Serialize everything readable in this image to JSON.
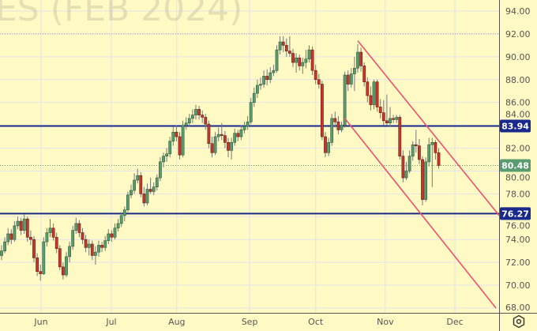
{
  "watermark": "ES (FEB 2024)",
  "colors": {
    "background": "#fff9c4",
    "up": "#5a9b6f",
    "down": "#c0392b",
    "level_line": "#1a2a8c",
    "channel": "#f0506e",
    "last_price_badge": "#5a9b6f",
    "grid": "#e3e3ea"
  },
  "settings_icon": "gear-icon",
  "chart_data": {
    "type": "candlestick",
    "ylim": [
      68,
      95
    ],
    "y_ticks": [
      "94.00",
      "92.00",
      "90.00",
      "88.00",
      "86.00",
      "84.00",
      "82.00",
      "80.00",
      "78.00",
      "76.00",
      "74.00",
      "72.00",
      "70.00",
      "68.00"
    ],
    "x_ticks": [
      {
        "label": "Jun",
        "bar": 12.2
      },
      {
        "label": "Jul",
        "bar": 33.9
      },
      {
        "label": "Aug",
        "bar": 54.1
      },
      {
        "label": "Sep",
        "bar": 76.6
      },
      {
        "label": "Oct",
        "bar": 97
      },
      {
        "label": "Nov",
        "bar": 118.5
      },
      {
        "label": "Dec",
        "bar": 140
      }
    ],
    "levels": [
      {
        "price": 83.94,
        "label": "83.94"
      },
      {
        "price": 76.27,
        "label": "76.27"
      }
    ],
    "dotted_levels": [
      92.0
    ],
    "last_price": {
      "price": 80.48,
      "label": "80.48"
    },
    "channel_lines": [
      {
        "from": {
          "bar": 110,
          "price": 91.4
        },
        "to": {
          "bar": 153.7,
          "price": 76.1
        }
      },
      {
        "from": {
          "bar": 106,
          "price": 84.6
        },
        "to": {
          "bar": 152.7,
          "price": 68.0
        }
      }
    ],
    "ohlc": [
      [
        72.6,
        73.5,
        72.2,
        73.0
      ],
      [
        73.0,
        74.2,
        72.8,
        73.8
      ],
      [
        73.8,
        75.0,
        73.5,
        74.5
      ],
      [
        74.5,
        74.9,
        73.6,
        74.0
      ],
      [
        74.0,
        75.6,
        73.8,
        75.2
      ],
      [
        75.2,
        76.0,
        74.9,
        75.6
      ],
      [
        75.6,
        75.9,
        74.4,
        74.8
      ],
      [
        74.8,
        76.2,
        74.5,
        75.8
      ],
      [
        75.8,
        76.0,
        73.8,
        74.2
      ],
      [
        74.2,
        74.8,
        73.5,
        74.0
      ],
      [
        74.0,
        74.3,
        72.0,
        72.4
      ],
      [
        72.4,
        72.8,
        70.8,
        71.2
      ],
      [
        71.2,
        71.8,
        70.4,
        71.0
      ],
      [
        71.0,
        74.2,
        70.9,
        73.8
      ],
      [
        73.8,
        75.0,
        73.4,
        74.6
      ],
      [
        74.6,
        75.8,
        74.2,
        75.0
      ],
      [
        75.0,
        75.4,
        73.9,
        74.2
      ],
      [
        74.2,
        74.6,
        72.8,
        73.2
      ],
      [
        73.2,
        73.5,
        71.3,
        71.6
      ],
      [
        71.6,
        72.0,
        70.5,
        70.9
      ],
      [
        70.9,
        72.9,
        70.7,
        72.5
      ],
      [
        72.5,
        73.8,
        72.0,
        73.4
      ],
      [
        73.4,
        75.2,
        73.1,
        74.8
      ],
      [
        74.8,
        75.9,
        74.5,
        75.4
      ],
      [
        75.4,
        75.7,
        74.2,
        74.6
      ],
      [
        74.6,
        75.0,
        73.6,
        74.0
      ],
      [
        74.0,
        74.4,
        72.9,
        73.3
      ],
      [
        73.3,
        74.0,
        72.6,
        73.6
      ],
      [
        73.6,
        73.9,
        72.2,
        72.6
      ],
      [
        72.6,
        73.4,
        71.8,
        72.9
      ],
      [
        72.9,
        73.9,
        72.5,
        73.5
      ],
      [
        73.5,
        73.8,
        72.9,
        73.3
      ],
      [
        73.3,
        74.3,
        73.0,
        73.9
      ],
      [
        73.9,
        74.9,
        73.6,
        74.5
      ],
      [
        74.5,
        74.8,
        73.8,
        74.2
      ],
      [
        74.2,
        75.4,
        74.0,
        75.0
      ],
      [
        75.0,
        75.8,
        74.7,
        75.4
      ],
      [
        75.4,
        76.4,
        75.1,
        76.1
      ],
      [
        76.1,
        76.9,
        75.6,
        76.6
      ],
      [
        76.6,
        78.2,
        76.4,
        77.9
      ],
      [
        77.9,
        78.8,
        77.6,
        78.3
      ],
      [
        78.3,
        79.8,
        78.0,
        79.2
      ],
      [
        79.2,
        80.2,
        78.9,
        79.6
      ],
      [
        79.6,
        79.9,
        77.7,
        78.0
      ],
      [
        78.0,
        78.6,
        76.9,
        77.2
      ],
      [
        77.2,
        78.9,
        77.0,
        78.4
      ],
      [
        78.4,
        79.4,
        78.0,
        78.2
      ],
      [
        78.2,
        79.0,
        77.9,
        78.6
      ],
      [
        78.6,
        79.7,
        78.3,
        79.4
      ],
      [
        79.4,
        81.2,
        79.1,
        80.8
      ],
      [
        80.8,
        81.6,
        80.3,
        81.3
      ],
      [
        81.3,
        82.0,
        80.8,
        81.5
      ],
      [
        81.5,
        83.0,
        81.2,
        82.6
      ],
      [
        82.6,
        83.9,
        82.2,
        83.4
      ],
      [
        83.4,
        84.0,
        82.6,
        83.0
      ],
      [
        83.0,
        83.4,
        81.0,
        81.4
      ],
      [
        81.4,
        84.4,
        81.2,
        84.0
      ],
      [
        84.0,
        84.7,
        83.6,
        84.2
      ],
      [
        84.2,
        85.0,
        83.9,
        84.6
      ],
      [
        84.6,
        85.4,
        84.2,
        84.9
      ],
      [
        84.9,
        85.8,
        84.5,
        85.4
      ],
      [
        85.4,
        85.7,
        84.5,
        84.9
      ],
      [
        84.9,
        85.3,
        84.2,
        84.7
      ],
      [
        84.7,
        85.0,
        83.6,
        84.1
      ],
      [
        84.1,
        84.4,
        82.0,
        82.4
      ],
      [
        82.4,
        83.0,
        81.2,
        81.6
      ],
      [
        81.6,
        83.4,
        81.4,
        83.0
      ],
      [
        83.0,
        83.8,
        82.6,
        83.2
      ],
      [
        83.2,
        84.2,
        82.7,
        83.1
      ],
      [
        83.1,
        83.5,
        82.0,
        82.5
      ],
      [
        82.5,
        82.9,
        81.2,
        81.8
      ],
      [
        81.8,
        82.9,
        81.0,
        82.5
      ],
      [
        82.5,
        83.7,
        82.2,
        83.3
      ],
      [
        83.3,
        83.6,
        82.6,
        83.0
      ],
      [
        83.0,
        84.0,
        82.7,
        83.6
      ],
      [
        83.6,
        84.3,
        83.3,
        83.9
      ],
      [
        83.9,
        84.8,
        83.6,
        84.3
      ],
      [
        84.3,
        86.4,
        84.1,
        86.0
      ],
      [
        86.0,
        87.3,
        85.6,
        86.8
      ],
      [
        86.8,
        88.0,
        86.4,
        87.5
      ],
      [
        87.5,
        88.2,
        87.1,
        87.6
      ],
      [
        87.6,
        88.8,
        87.3,
        88.3
      ],
      [
        88.3,
        88.9,
        87.5,
        88.0
      ],
      [
        88.0,
        89.1,
        87.7,
        88.6
      ],
      [
        88.6,
        89.3,
        88.3,
        88.8
      ],
      [
        88.8,
        91.0,
        88.6,
        90.6
      ],
      [
        90.6,
        91.8,
        90.2,
        91.3
      ],
      [
        91.3,
        91.8,
        90.4,
        91.0
      ],
      [
        91.0,
        91.6,
        90.0,
        90.5
      ],
      [
        90.5,
        91.8,
        90.0,
        90.3
      ],
      [
        90.3,
        90.7,
        89.1,
        89.5
      ],
      [
        89.5,
        90.3,
        88.6,
        89.9
      ],
      [
        89.9,
        90.2,
        88.8,
        89.2
      ],
      [
        89.2,
        89.9,
        88.5,
        89.5
      ],
      [
        89.5,
        90.6,
        89.0,
        89.8
      ],
      [
        89.8,
        91.0,
        89.5,
        90.6
      ],
      [
        90.6,
        90.9,
        88.4,
        88.8
      ],
      [
        88.8,
        89.3,
        87.6,
        88.0
      ],
      [
        88.0,
        88.5,
        87.2,
        87.6
      ],
      [
        87.6,
        87.9,
        82.7,
        83.0
      ],
      [
        83.0,
        83.4,
        81.2,
        81.6
      ],
      [
        81.6,
        82.9,
        81.3,
        82.5
      ],
      [
        82.5,
        85.0,
        82.2,
        84.6
      ],
      [
        84.6,
        85.2,
        83.8,
        84.3
      ],
      [
        84.3,
        84.8,
        83.2,
        83.6
      ],
      [
        83.6,
        84.3,
        83.4,
        84.0
      ],
      [
        84.0,
        88.7,
        83.8,
        88.4
      ],
      [
        88.4,
        88.8,
        87.0,
        87.6
      ],
      [
        87.6,
        89.0,
        87.3,
        88.5
      ],
      [
        88.5,
        90.0,
        87.0,
        89.0
      ],
      [
        89.0,
        91.1,
        88.6,
        90.4
      ],
      [
        90.4,
        90.8,
        88.7,
        89.2
      ],
      [
        89.2,
        89.5,
        87.4,
        87.8
      ],
      [
        87.8,
        88.2,
        86.0,
        86.6
      ],
      [
        86.6,
        87.4,
        85.3,
        85.8
      ],
      [
        85.8,
        88.0,
        85.4,
        87.8
      ],
      [
        87.8,
        88.0,
        85.2,
        85.6
      ],
      [
        85.6,
        86.3,
        84.6,
        85.1
      ],
      [
        85.1,
        86.2,
        84.0,
        84.4
      ],
      [
        84.4,
        86.7,
        84.0,
        84.2
      ],
      [
        84.2,
        85.6,
        83.9,
        84.6
      ],
      [
        84.6,
        84.9,
        84.2,
        84.5
      ],
      [
        84.5,
        84.9,
        84.2,
        84.7
      ],
      [
        84.7,
        84.9,
        81.0,
        81.3
      ],
      [
        81.3,
        81.8,
        79.0,
        79.4
      ],
      [
        79.4,
        80.8,
        79.2,
        80.0
      ],
      [
        80.0,
        81.8,
        79.8,
        81.3
      ],
      [
        81.3,
        82.6,
        80.9,
        82.3
      ],
      [
        82.3,
        83.6,
        81.6,
        82.2
      ],
      [
        82.2,
        82.8,
        80.6,
        81.0
      ],
      [
        81.0,
        81.3,
        77.0,
        77.5
      ],
      [
        77.5,
        81.2,
        77.3,
        80.8
      ],
      [
        80.8,
        82.9,
        80.4,
        82.3
      ],
      [
        82.3,
        82.9,
        78.6,
        82.5
      ],
      [
        82.5,
        82.7,
        81.0,
        81.6
      ],
      [
        81.6,
        82.0,
        80.2,
        80.48
      ]
    ]
  }
}
